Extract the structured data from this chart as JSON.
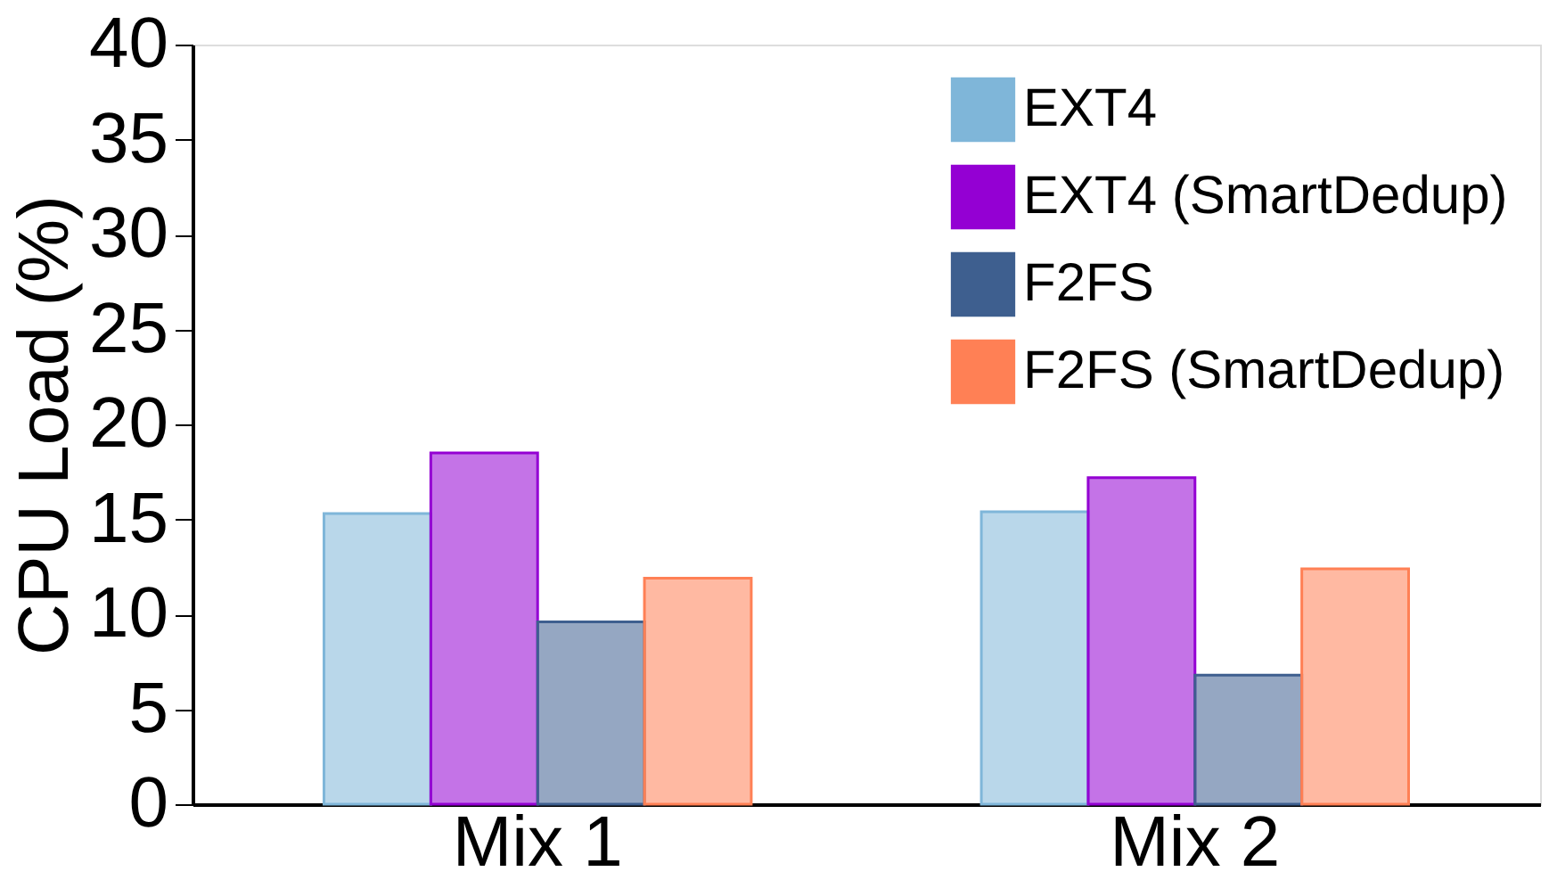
{
  "chart_data": {
    "type": "bar",
    "ylabel": "CPU Load (%)",
    "categories": [
      "Mix 1",
      "Mix 2"
    ],
    "series": [
      {
        "name": "EXT4",
        "color": "#7fb6d9",
        "values": [
          15.3,
          15.4
        ]
      },
      {
        "name": "EXT4 (SmartDedup)",
        "color": "#9400d3",
        "values": [
          18.5,
          17.2
        ]
      },
      {
        "name": "F2FS",
        "color": "#3e5f8f",
        "values": [
          9.6,
          6.8
        ]
      },
      {
        "name": "F2FS (SmartDedup)",
        "color": "#ff8055",
        "values": [
          11.9,
          12.4
        ]
      }
    ],
    "ylim": [
      0,
      40
    ],
    "yticks": [
      0,
      5,
      10,
      15,
      20,
      25,
      30,
      35,
      40
    ],
    "grid": false,
    "legend": "top right"
  }
}
